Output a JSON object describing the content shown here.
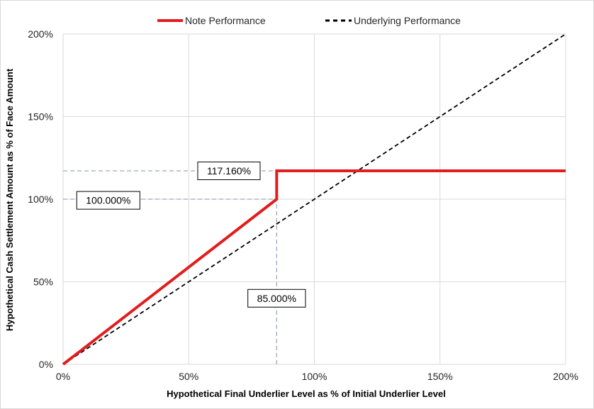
{
  "chart_data": {
    "type": "line",
    "title": "",
    "xlabel": "Hypothetical Final Underlier Level as % of Initial Underlier Level",
    "ylabel": "Hypothetical Cash Settlement Amount as % of Face Amount",
    "xlim": [
      0,
      200
    ],
    "ylim": [
      0,
      200
    ],
    "x_ticks": [
      "0%",
      "50%",
      "100%",
      "150%",
      "200%"
    ],
    "y_ticks": [
      "0%",
      "50%",
      "100%",
      "150%",
      "200%"
    ],
    "x_tick_values": [
      0,
      50,
      100,
      150,
      200
    ],
    "y_tick_values": [
      0,
      50,
      100,
      150,
      200
    ],
    "grid": true,
    "legend_position": "top-center",
    "series": [
      {
        "name": "Note Performance",
        "style": "solid",
        "color": "#e31c1c",
        "points": [
          [
            0,
            0
          ],
          [
            85,
            100
          ],
          [
            85,
            117.16
          ],
          [
            200,
            117.16
          ]
        ]
      },
      {
        "name": "Underlying Performance",
        "style": "dashed",
        "color": "#000000",
        "points": [
          [
            0,
            0
          ],
          [
            200,
            200
          ]
        ]
      }
    ],
    "reference_lines": [
      {
        "label": "117.160%",
        "points": [
          [
            0,
            117.16
          ],
          [
            85,
            117.16
          ]
        ]
      },
      {
        "label": "100.000%",
        "points": [
          [
            0,
            100
          ],
          [
            85,
            100
          ]
        ]
      },
      {
        "label": "85.000%",
        "points": [
          [
            85,
            0
          ],
          [
            85,
            100
          ]
        ]
      }
    ],
    "annotations": [
      {
        "text": "117.160%",
        "x": 66,
        "y": 117.16
      },
      {
        "text": "100.000%",
        "x": 18,
        "y": 99.3
      },
      {
        "text": "85.000%",
        "x": 85,
        "y": 40
      }
    ]
  }
}
